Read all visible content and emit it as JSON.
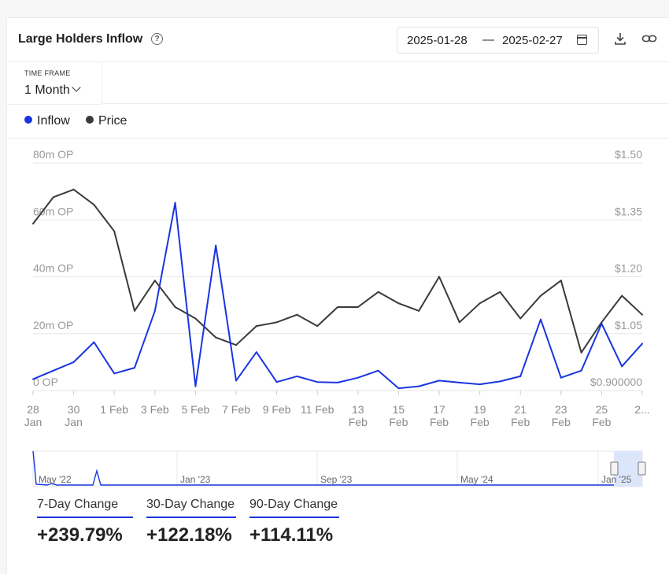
{
  "header": {
    "title": "Large Holders Inflow",
    "date_start": "2025-01-28",
    "date_sep": "—",
    "date_end": "2025-02-27"
  },
  "timeframe": {
    "label": "TIME FRAME",
    "value": "1 Month"
  },
  "legend": {
    "inflow": "Inflow",
    "price": "Price"
  },
  "colors": {
    "inflow": "#1a35e0",
    "price": "#3a3a3a",
    "grid": "#e6e6e6"
  },
  "chart_data": {
    "type": "line",
    "x_tick_labels": [
      [
        "28",
        "Jan"
      ],
      [
        "30",
        "Jan"
      ],
      [
        "1 Feb"
      ],
      [
        "3 Feb"
      ],
      [
        "5 Feb"
      ],
      [
        "7 Feb"
      ],
      [
        "9 Feb"
      ],
      [
        "11 Feb"
      ],
      [
        "13",
        "Feb"
      ],
      [
        "15",
        "Feb"
      ],
      [
        "17",
        "Feb"
      ],
      [
        "19",
        "Feb"
      ],
      [
        "21",
        "Feb"
      ],
      [
        "23",
        "Feb"
      ],
      [
        "25",
        "Feb"
      ],
      [
        "2..."
      ]
    ],
    "y_left_ticks": [
      "0 OP",
      "20m OP",
      "40m OP",
      "60m OP",
      "80m OP"
    ],
    "y_right_ticks": [
      "$0.900000",
      "$1.05",
      "$1.20",
      "$1.35",
      "$1.50"
    ],
    "y_left_range": [
      0,
      80000000
    ],
    "y_right_range": [
      0.9,
      1.5
    ],
    "grid": true,
    "legend_position": "top-left",
    "series": [
      {
        "name": "Inflow",
        "axis": "left",
        "values": [
          4000000,
          7000000,
          10000000,
          17000000,
          6000000,
          8000000,
          28000000,
          66000000,
          1500000,
          51000000,
          3500000,
          13500000,
          3000000,
          5000000,
          3000000,
          2800000,
          4500000,
          7000000,
          800000,
          1500000,
          3500000,
          2800000,
          2200000,
          3200000,
          5000000,
          25000000,
          4500000,
          7000000,
          23500000,
          8500000,
          16500000
        ]
      },
      {
        "name": "Price",
        "axis": "right",
        "values": [
          1.34,
          1.41,
          1.43,
          1.39,
          1.32,
          1.11,
          1.19,
          1.12,
          1.09,
          1.04,
          1.02,
          1.07,
          1.08,
          1.1,
          1.07,
          1.12,
          1.12,
          1.16,
          1.13,
          1.11,
          1.2,
          1.08,
          1.13,
          1.16,
          1.09,
          1.15,
          1.19,
          1.0,
          1.08,
          1.15,
          1.1
        ]
      }
    ]
  },
  "navigator": {
    "labels": [
      "May '22",
      "Jan '23",
      "Sep '23",
      "May '24",
      "Jan '25"
    ]
  },
  "stats": [
    {
      "label": "7-Day Change",
      "value": "+239.79%"
    },
    {
      "label": "30-Day Change",
      "value": "+122.18%"
    },
    {
      "label": "90-Day Change",
      "value": "+114.11%"
    }
  ]
}
